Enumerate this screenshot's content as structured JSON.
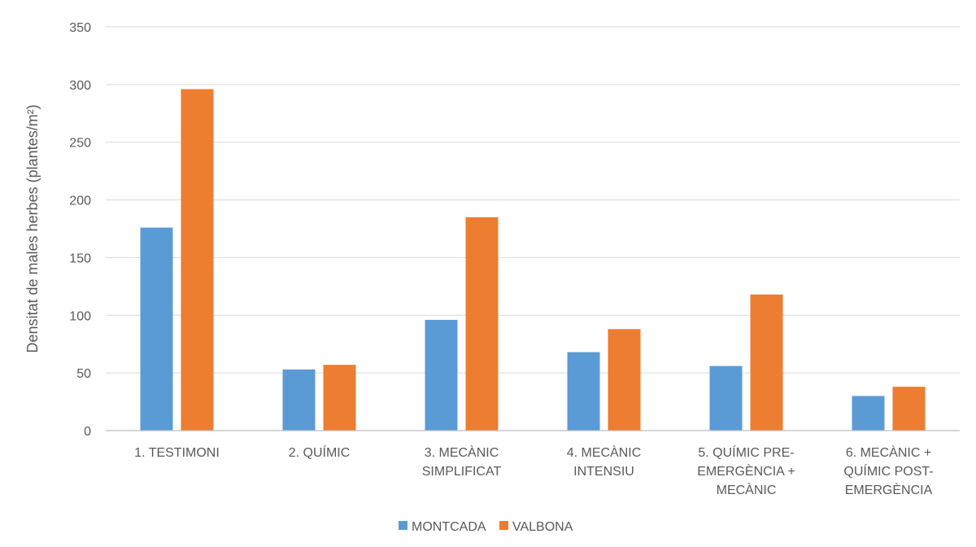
{
  "chart_data": {
    "type": "bar",
    "title": "",
    "xlabel": "",
    "ylabel": "Densitat de males herbes (plantes/m²)",
    "ylim": [
      0,
      350
    ],
    "yticks": [
      0,
      50,
      100,
      150,
      200,
      250,
      300,
      350
    ],
    "grid": true,
    "legend_position": "bottom",
    "categories": [
      [
        "1. TESTIMONI"
      ],
      [
        "2. QUÍMIC"
      ],
      [
        "3. MECÀNIC",
        "SIMPLIFICAT"
      ],
      [
        "4. MECÀNIC",
        "INTENSIU"
      ],
      [
        "5. QUÍMIC PRE-",
        "EMERGÈNCIA +",
        "MECÀNIC"
      ],
      [
        "6. MECÀNIC +",
        "QUÍMIC POST-",
        "EMERGÈNCIA"
      ]
    ],
    "series": [
      {
        "name": "MONTCADA",
        "color": "#5b9bd5",
        "values": [
          176,
          53,
          96,
          68,
          56,
          30
        ]
      },
      {
        "name": "VALBONA",
        "color": "#ed7d31",
        "values": [
          296,
          57,
          185,
          88,
          118,
          38
        ]
      }
    ]
  }
}
